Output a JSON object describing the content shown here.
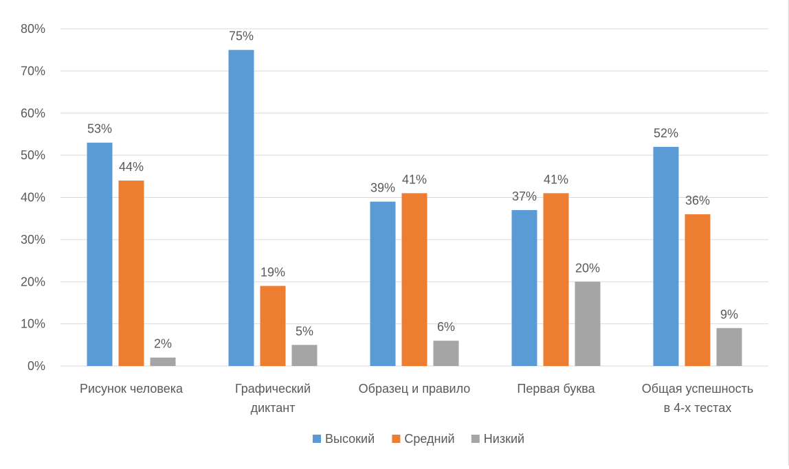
{
  "chart_data": {
    "type": "bar",
    "categories": [
      [
        "Рисунок человека"
      ],
      [
        "Графический",
        "диктант"
      ],
      [
        "Образец и правило"
      ],
      [
        "Первая буква"
      ],
      [
        "Общая успешность",
        "в 4-х тестах"
      ]
    ],
    "series": [
      {
        "name": "Высокий",
        "color": "#5B9BD5",
        "values": [
          53,
          75,
          39,
          37,
          52
        ],
        "labels": [
          "53%",
          "75%",
          "39%",
          "37%",
          "52%"
        ]
      },
      {
        "name": "Средний",
        "color": "#ED7D31",
        "values": [
          44,
          19,
          41,
          41,
          36
        ],
        "labels": [
          "44%",
          "19%",
          "41%",
          "41%",
          "36%"
        ]
      },
      {
        "name": "Низкий",
        "color": "#A5A5A5",
        "values": [
          2,
          5,
          6,
          20,
          9
        ],
        "labels": [
          "2%",
          "5%",
          "6%",
          "20%",
          "9%"
        ]
      }
    ],
    "y_ticks": [
      "0%",
      "10%",
      "20%",
      "30%",
      "40%",
      "50%",
      "60%",
      "70%",
      "80%"
    ],
    "ylim": [
      0,
      80
    ],
    "grid": true,
    "legend_position": "bottom",
    "gridline_color": "#d9d9d9"
  }
}
